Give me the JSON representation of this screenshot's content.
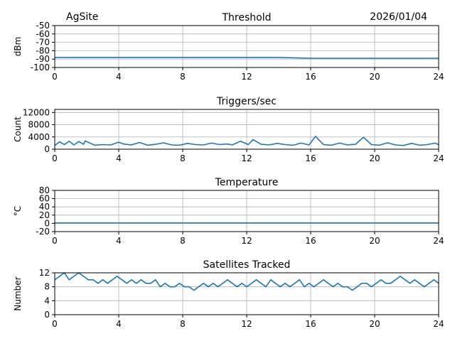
{
  "header": {
    "site": "AgSite",
    "date": "2026/01/04"
  },
  "colors": {
    "series": "#1f77b4",
    "grid": "#b0b0b0",
    "axes": "#000000"
  },
  "chart_data": [
    {
      "type": "line",
      "title": "Threshold",
      "xlabel": "",
      "ylabel": "dBm",
      "xlim": [
        0,
        24
      ],
      "ylim": [
        -100,
        -50
      ],
      "xticks": [
        0,
        4,
        8,
        12,
        16,
        20,
        24
      ],
      "yticks": [
        -100,
        -90,
        -80,
        -70,
        -60,
        -50
      ],
      "grid": true,
      "series": [
        {
          "x": [
            0,
            2,
            4,
            6,
            8,
            10,
            12,
            14,
            16,
            18,
            20,
            22,
            24
          ],
          "values": [
            -88,
            -88,
            -88,
            -88,
            -88,
            -88,
            -88,
            -88,
            -89,
            -89,
            -89,
            -89,
            -89
          ]
        }
      ]
    },
    {
      "type": "line",
      "title": "Triggers/sec",
      "xlabel": "",
      "ylabel": "Count",
      "xlim": [
        0,
        24
      ],
      "ylim": [
        0,
        13000
      ],
      "xticks": [
        0,
        4,
        8,
        12,
        16,
        20,
        24
      ],
      "yticks": [
        0,
        4000,
        8000,
        12000
      ],
      "grid": true,
      "series": [
        {
          "x": [
            0,
            0.3,
            0.6,
            0.9,
            1.2,
            1.5,
            1.8,
            1.9,
            2.5,
            3.0,
            3.5,
            4.0,
            4.3,
            4.8,
            5.3,
            5.8,
            6.3,
            6.8,
            7.3,
            7.8,
            8.3,
            8.8,
            9.3,
            9.8,
            10.3,
            10.8,
            11.1,
            11.6,
            12.1,
            12.4,
            12.9,
            13.4,
            13.9,
            14.4,
            14.9,
            15.4,
            15.9,
            16.3,
            16.8,
            17.3,
            17.8,
            18.3,
            18.8,
            19.3,
            19.8,
            20.3,
            20.8,
            21.3,
            21.8,
            22.3,
            22.8,
            23.3,
            23.8,
            24
          ],
          "values": [
            1200,
            2400,
            1500,
            2600,
            1400,
            2500,
            1600,
            2700,
            1300,
            1500,
            1400,
            2300,
            1700,
            1400,
            2200,
            1300,
            1600,
            2100,
            1400,
            1300,
            1900,
            1500,
            1400,
            2000,
            1500,
            1700,
            1400,
            2600,
            1500,
            3100,
            1600,
            1400,
            1900,
            1500,
            1300,
            2000,
            1400,
            4200,
            1500,
            1300,
            2000,
            1400,
            1600,
            3900,
            1500,
            1300,
            2100,
            1400,
            1200,
            1900,
            1300,
            1500,
            2000,
            1400
          ]
        }
      ]
    },
    {
      "type": "line",
      "title": "Temperature",
      "xlabel": "",
      "ylabel": "°C",
      "xlim": [
        0,
        24
      ],
      "ylim": [
        -20,
        80
      ],
      "xticks": [
        0,
        4,
        8,
        12,
        16,
        20,
        24
      ],
      "yticks": [
        -20,
        0,
        20,
        40,
        60,
        80
      ],
      "grid": true,
      "series": [
        {
          "x": [
            0,
            4,
            8,
            12,
            16,
            20,
            24
          ],
          "values": [
            1,
            1,
            1,
            1,
            1,
            1,
            1
          ]
        }
      ]
    },
    {
      "type": "line",
      "title": "Satellites Tracked",
      "xlabel": "",
      "ylabel": "Number",
      "xlim": [
        0,
        24
      ],
      "ylim": [
        0,
        12
      ],
      "xticks": [
        0,
        4,
        8,
        12,
        16,
        20,
        24
      ],
      "yticks": [
        0,
        4,
        8,
        12
      ],
      "grid": true,
      "series": [
        {
          "x": [
            0,
            0.3,
            0.6,
            0.9,
            1.2,
            1.5,
            1.8,
            2.1,
            2.4,
            2.7,
            3.0,
            3.3,
            3.6,
            3.9,
            4.2,
            4.5,
            4.8,
            5.1,
            5.4,
            5.7,
            6.0,
            6.3,
            6.6,
            6.9,
            7.2,
            7.5,
            7.8,
            8.1,
            8.4,
            8.7,
            9.0,
            9.3,
            9.6,
            9.9,
            10.2,
            10.5,
            10.8,
            11.1,
            11.4,
            11.7,
            12.0,
            12.3,
            12.6,
            12.9,
            13.2,
            13.5,
            13.8,
            14.1,
            14.4,
            14.7,
            15.0,
            15.3,
            15.6,
            15.9,
            16.2,
            16.5,
            16.8,
            17.1,
            17.4,
            17.7,
            18.0,
            18.3,
            18.6,
            18.9,
            19.2,
            19.5,
            19.8,
            20.1,
            20.4,
            20.7,
            21.0,
            21.3,
            21.6,
            21.9,
            22.2,
            22.5,
            22.8,
            23.1,
            23.4,
            23.7,
            24.0
          ],
          "values": [
            10,
            11,
            12,
            10,
            11,
            12,
            11,
            10,
            10,
            9,
            10,
            9,
            10,
            11,
            10,
            9,
            10,
            9,
            10,
            9,
            9,
            10,
            8,
            9,
            8,
            8,
            9,
            8,
            8,
            7,
            8,
            9,
            8,
            9,
            8,
            9,
            10,
            9,
            8,
            9,
            8,
            9,
            10,
            9,
            8,
            10,
            9,
            8,
            9,
            8,
            9,
            10,
            8,
            9,
            8,
            9,
            10,
            9,
            8,
            9,
            8,
            8,
            7,
            8,
            9,
            9,
            8,
            9,
            10,
            9,
            9,
            10,
            11,
            10,
            9,
            10,
            9,
            8,
            9,
            10,
            9
          ]
        }
      ]
    }
  ]
}
